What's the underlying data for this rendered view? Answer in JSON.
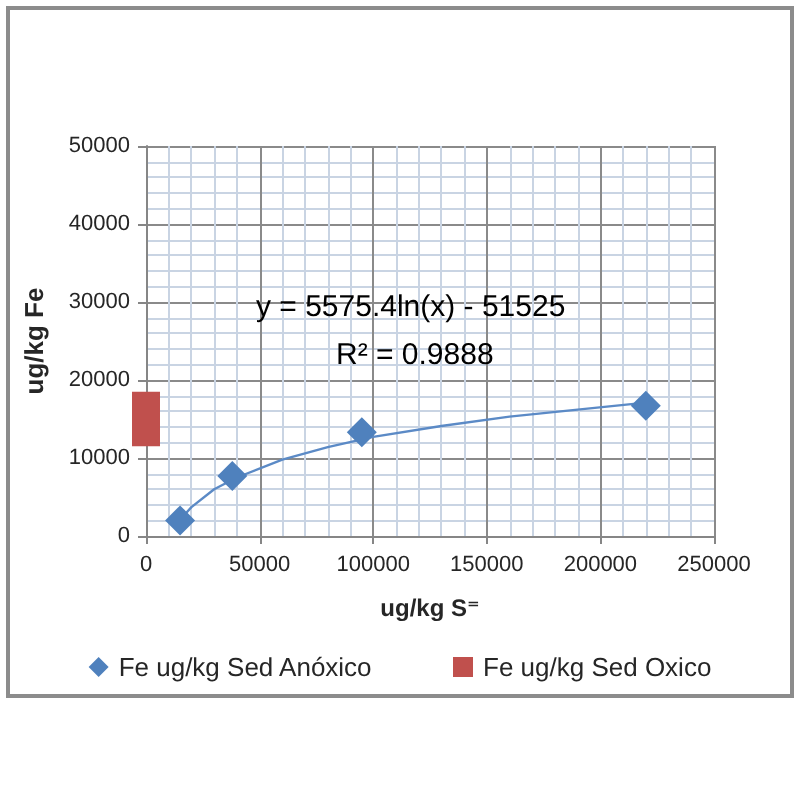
{
  "chart_data": {
    "type": "scatter",
    "xlabel": "ug/kg S⁼",
    "ylabel": "ug/kg Fe",
    "annotations": [
      "y = 5575.4ln(x) - 51525",
      "R² = 0.9888"
    ],
    "xlim": [
      0,
      250000
    ],
    "xticks": [
      0,
      50000,
      100000,
      150000,
      200000,
      250000
    ],
    "ylim": [
      0,
      50000
    ],
    "yticks": [
      0,
      10000,
      20000,
      30000,
      40000,
      50000
    ],
    "grid": true,
    "legend": "bottom",
    "marker": "diamond",
    "series": [
      {
        "name": "Fe ug/kg Sed Anóxico",
        "color": "#4f81bd",
        "x": [
          15000,
          38000,
          95000,
          220000
        ],
        "values": [
          2000,
          7700,
          13300,
          16700
        ]
      },
      {
        "name": "Fe ug/kg Sed Oxico",
        "type": "bar",
        "color": "#c0504d",
        "x": [
          0
        ],
        "base": [
          11500
        ],
        "values": [
          7000
        ]
      },
      {
        "type": "line",
        "marker": "none",
        "line_style": "solid",
        "color": "#5b8ac6",
        "x": [
          15000,
          20000,
          30000,
          40000,
          60000,
          80000,
          100000,
          130000,
          160000,
          190000,
          220000
        ],
        "values": [
          2100,
          3700,
          6000,
          7500,
          9800,
          11400,
          12700,
          14100,
          15300,
          16200,
          17100
        ]
      }
    ]
  }
}
